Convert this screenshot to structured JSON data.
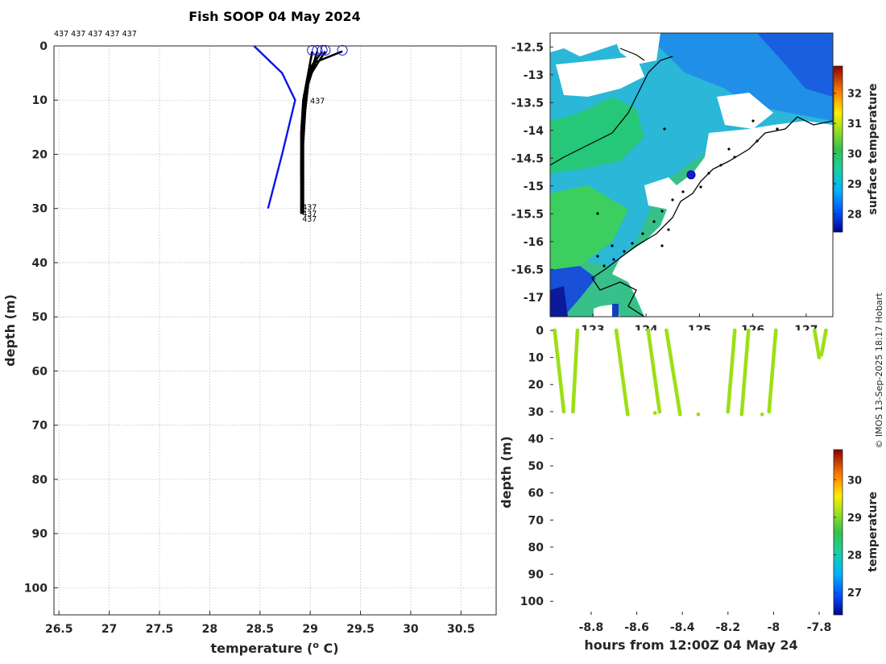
{
  "colors": {
    "profile": "#000000",
    "climatology": "#0a14e6",
    "surface_marker": "#1a1ad6",
    "coast": "#000000"
  },
  "chart_data": [
    {
      "type": "line",
      "title": "Fish SOOP 04 May 2024",
      "xlabel": "temperature (°C)",
      "ylabel": "depth (m)",
      "xlim": [
        26.45,
        30.85
      ],
      "ylim": [
        105,
        0
      ],
      "xticks": [
        "26.5",
        "27",
        "27.5",
        "28",
        "28.5",
        "29",
        "29.5",
        "30",
        "30.5"
      ],
      "yticks": [
        "0",
        "10",
        "20",
        "30",
        "40",
        "50",
        "60",
        "70",
        "80",
        "90",
        "100"
      ],
      "top_labels": "437 437 437 437 437",
      "profile_labels": [
        "437",
        "437",
        "437",
        "437"
      ],
      "series": [
        {
          "name": "climatology",
          "temp": [
            28.44,
            28.72,
            28.85,
            28.72,
            28.58
          ],
          "depth": [
            0,
            5,
            10,
            20,
            30
          ]
        },
        {
          "name": "profile 1",
          "temp": [
            29.32,
            29.05,
            28.98,
            28.95,
            28.93,
            28.93,
            28.93
          ],
          "depth": [
            1,
            3,
            7,
            12,
            18,
            25,
            31
          ]
        },
        {
          "name": "profile 2",
          "temp": [
            29.12,
            29.0,
            28.96,
            28.93,
            28.92,
            28.92,
            28.92
          ],
          "depth": [
            1,
            4,
            8,
            13,
            19,
            25,
            30
          ]
        },
        {
          "name": "profile 3",
          "temp": [
            29.07,
            29.02,
            28.94,
            28.92,
            28.91,
            28.91
          ],
          "depth": [
            1,
            4,
            9,
            15,
            22,
            31
          ]
        },
        {
          "name": "profile 4",
          "temp": [
            29.02,
            28.98,
            28.93,
            28.91,
            28.91,
            28.92
          ],
          "depth": [
            1,
            5,
            10,
            16,
            23,
            30
          ]
        },
        {
          "name": "profile 5",
          "temp": [
            29.15,
            29.08,
            28.98,
            28.94,
            28.92,
            28.92,
            28.93
          ],
          "depth": [
            1,
            3,
            6,
            11,
            17,
            24,
            30
          ]
        }
      ],
      "surface_markers": [
        29.02,
        29.07,
        29.12,
        29.15,
        29.32
      ]
    },
    {
      "type": "heatmap",
      "colorbar_label": "surface temperature",
      "colorbar_ticks": [
        "28",
        "29",
        "30",
        "31",
        "32"
      ],
      "clim": [
        27.4,
        32.9
      ],
      "xlim": [
        122.2,
        127.5
      ],
      "ylim": [
        -17.35,
        -12.25
      ],
      "xticks": [
        "123",
        "124",
        "125",
        "126",
        "127"
      ],
      "yticks": [
        "-12.5",
        "-13",
        "-13.5",
        "-14",
        "-14.5",
        "-15",
        "-15.5",
        "-16",
        "-16.5",
        "-17"
      ],
      "ship_position": {
        "lon": 124.88,
        "lat": -14.83
      }
    },
    {
      "type": "scatter",
      "xlabel": "hours from 12:00Z 04 May 24",
      "ylabel": "depth (m)",
      "xlim": [
        -8.98,
        -7.74
      ],
      "ylim": [
        105,
        0
      ],
      "xticks": [
        "-8.8",
        "-8.6",
        "-8.4",
        "-8.2",
        "-8",
        "-7.8"
      ],
      "yticks": [
        "0",
        "10",
        "20",
        "30",
        "40",
        "50",
        "60",
        "70",
        "80",
        "90",
        "100"
      ],
      "colorbar_label": "temperature",
      "colorbar_ticks": [
        "27",
        "28",
        "29",
        "30"
      ],
      "clim": [
        26.4,
        30.8
      ],
      "point_temperature": 29.0,
      "casts": [
        {
          "h_start": -8.96,
          "h_end": -8.92,
          "depth_max": 30
        },
        {
          "h_start": -8.86,
          "h_end": -8.88,
          "depth_max": 30
        },
        {
          "h_start": -8.69,
          "h_end": -8.64,
          "depth_max": 31
        },
        {
          "h_start": -8.55,
          "h_end": -8.5,
          "depth_max": 30
        },
        {
          "h_start": -8.47,
          "h_end": -8.41,
          "depth_max": 31
        },
        {
          "h_start": -8.17,
          "h_end": -8.2,
          "depth_max": 30
        },
        {
          "h_start": -8.11,
          "h_end": -8.14,
          "depth_max": 31
        },
        {
          "h_start": -7.99,
          "h_end": -8.02,
          "depth_max": 30
        },
        {
          "h_start": -7.82,
          "h_end": -7.8,
          "depth_max": 10
        },
        {
          "h_start": -7.77,
          "h_end": -7.79,
          "depth_max": 9
        }
      ],
      "isolated_points": [
        {
          "h": -8.52,
          "depth": 30.5
        },
        {
          "h": -8.33,
          "depth": 31
        },
        {
          "h": -8.05,
          "depth": 31
        }
      ]
    }
  ],
  "credit": "© IMOS 13-Sep-2025 18:17 Hobart"
}
